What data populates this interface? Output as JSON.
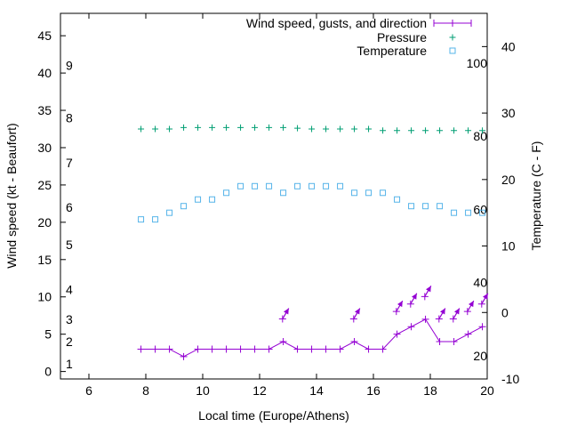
{
  "chart_data": {
    "type": "line",
    "x": [
      7.83,
      8.33,
      8.83,
      9.33,
      9.83,
      10.33,
      10.83,
      11.33,
      11.83,
      12.33,
      12.83,
      13.33,
      13.83,
      14.33,
      14.83,
      15.33,
      15.83,
      16.33,
      16.83,
      17.33,
      17.83,
      18.33,
      18.83,
      19.33,
      19.83
    ],
    "xlabel": "Local time (Europe/Athens)",
    "ylabel": "Wind speed (kt - Beaufort)",
    "y2label": "Temperature (C - F)",
    "xlim": [
      5,
      20
    ],
    "ylim": [
      -1,
      48
    ],
    "y2lim": [
      -10,
      45
    ],
    "xticks": [
      "6",
      "8",
      "10",
      "12",
      "14",
      "16",
      "18",
      "20"
    ],
    "yticks": [
      "0",
      "5",
      "10",
      "15",
      "20",
      "25",
      "30",
      "35",
      "40",
      "45"
    ],
    "y2ticks": [
      "-10",
      "0",
      "10",
      "20",
      "30",
      "40"
    ],
    "beaufort_labels": [
      {
        "text": "1",
        "y": 1
      },
      {
        "text": "2",
        "y": 4
      },
      {
        "text": "3",
        "y": 7
      },
      {
        "text": "4",
        "y": 11
      },
      {
        "text": "5",
        "y": 17
      },
      {
        "text": "6",
        "y": 22
      },
      {
        "text": "7",
        "y": 28
      },
      {
        "text": "8",
        "y": 34
      },
      {
        "text": "9",
        "y": 41
      }
    ],
    "fahrenheit_labels": [
      {
        "text": "20",
        "y": -6.5
      },
      {
        "text": "40",
        "y": 4.5
      },
      {
        "text": "60",
        "y": 15.5
      },
      {
        "text": "80",
        "y": 26.5
      },
      {
        "text": "100",
        "y": 37.5
      }
    ],
    "series": [
      {
        "name": "Wind speed, gusts, and direction",
        "axis": "y1",
        "values": [
          3,
          3,
          3,
          2,
          3,
          3,
          3,
          3,
          3,
          3,
          4,
          3,
          3,
          3,
          3,
          4,
          3,
          3,
          5,
          6,
          7,
          4,
          4,
          5,
          6
        ]
      },
      {
        "name": "Pressure",
        "axis": "y1",
        "values": [
          32.5,
          32.5,
          32.5,
          32.7,
          32.7,
          32.7,
          32.7,
          32.7,
          32.7,
          32.7,
          32.7,
          32.6,
          32.5,
          32.5,
          32.5,
          32.5,
          32.5,
          32.3,
          32.3,
          32.3,
          32.3,
          32.3,
          32.3,
          32.3,
          32.3
        ]
      },
      {
        "name": "Temperature",
        "axis": "y2",
        "values": [
          14,
          14,
          15,
          16,
          17,
          17,
          18,
          19,
          19,
          19,
          18,
          19,
          19,
          19,
          19,
          18,
          18,
          18,
          17,
          16,
          16,
          16,
          15,
          15,
          15
        ]
      }
    ],
    "gusts": [
      {
        "x": 12.9,
        "y": 8
      },
      {
        "x": 15.4,
        "y": 8
      },
      {
        "x": 16.9,
        "y": 9
      },
      {
        "x": 17.4,
        "y": 10
      },
      {
        "x": 17.9,
        "y": 11
      },
      {
        "x": 18.4,
        "y": 8
      },
      {
        "x": 18.9,
        "y": 8
      },
      {
        "x": 19.4,
        "y": 9
      },
      {
        "x": 19.9,
        "y": 10
      }
    ],
    "colors": {
      "wind": "#9400d3",
      "pressure": "#009e73",
      "temperature": "#56b4e9"
    },
    "grid": false,
    "legend_position": "top-right"
  }
}
